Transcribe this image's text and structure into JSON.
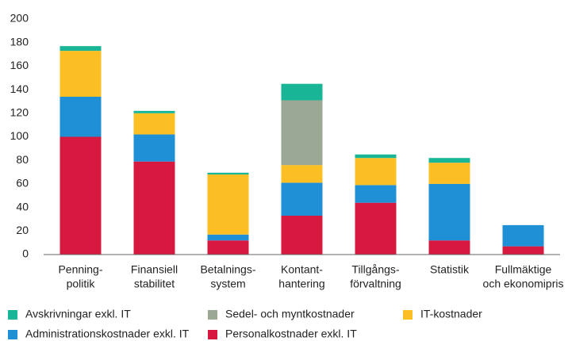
{
  "chart_data": {
    "type": "stacked_bar",
    "categories": [
      [
        "Penning-",
        "politik"
      ],
      [
        "Finansiell",
        "stabilitet"
      ],
      [
        "Betalnings-",
        "system"
      ],
      [
        "Kontant-",
        "hantering"
      ],
      [
        "Tillgångs-",
        "förvaltning"
      ],
      [
        "Statistik"
      ],
      [
        "Fullmäktige",
        "och ekonomipris"
      ]
    ],
    "series": [
      {
        "name": "Personalkostnader exkl. IT",
        "color": "#d7193f",
        "values": [
          100,
          79,
          12,
          33,
          44,
          12,
          7
        ]
      },
      {
        "name": "Administrationskostnader exkl. IT",
        "color": "#1f8fd6",
        "values": [
          34,
          23,
          5,
          28,
          15,
          48,
          18
        ]
      },
      {
        "name": "IT-kostnader",
        "color": "#fbbf24",
        "values": [
          39,
          18,
          51,
          15,
          23,
          18,
          0
        ]
      },
      {
        "name": "Sedel- och myntkostnader",
        "color": "#9aa894",
        "values": [
          0,
          0,
          0,
          55,
          0,
          0,
          0
        ]
      },
      {
        "name": "Avskrivningar exkl. IT",
        "color": "#18b597",
        "values": [
          4,
          2,
          1.5,
          14,
          3,
          4,
          0
        ]
      }
    ],
    "ylim": [
      0,
      200
    ],
    "yticks": [
      0,
      20,
      40,
      60,
      80,
      100,
      120,
      140,
      160,
      180,
      200
    ],
    "grid": false
  }
}
